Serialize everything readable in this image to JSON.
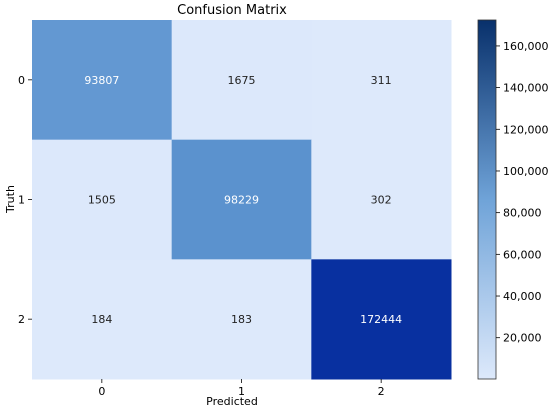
{
  "chart_data": {
    "type": "heatmap",
    "title": "Confusion Matrix",
    "xlabel": "Predicted",
    "ylabel": "Truth",
    "x_categories": [
      "0",
      "1",
      "2"
    ],
    "y_categories": [
      "0",
      "1",
      "2"
    ],
    "matrix": [
      [
        93807,
        1675,
        311
      ],
      [
        1505,
        98229,
        302
      ],
      [
        184,
        183,
        172444
      ]
    ],
    "colorscale": {
      "name": "Blues",
      "min_color": "#dde9fb",
      "max_color": "#08306b",
      "vmin": 183,
      "vmax": 172444
    },
    "colorbar": {
      "ticks": [
        20000,
        40000,
        60000,
        80000,
        100000,
        120000,
        140000,
        160000
      ],
      "tick_labels": [
        "20,000",
        "40,000",
        "60,000",
        "80,000",
        "100,000",
        "120,000",
        "140,000",
        "160,000"
      ]
    },
    "grid": false,
    "legend": "colorbar-right"
  }
}
